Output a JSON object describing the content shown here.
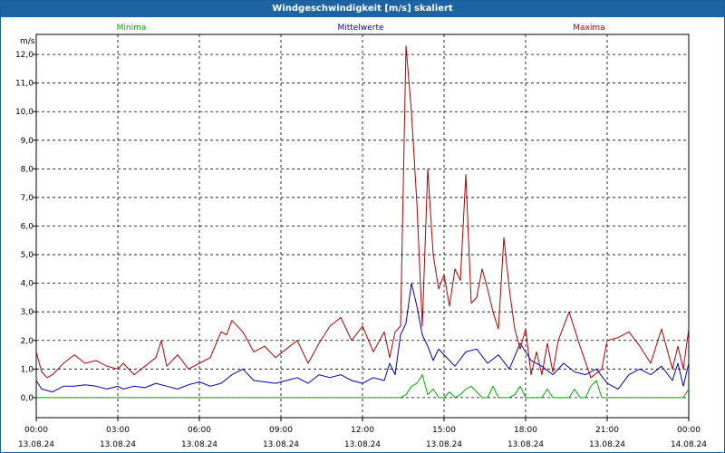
{
  "window": {
    "title": "Windgeschwindigkeit [m/s] skaliert"
  },
  "chart_data": {
    "type": "line",
    "title": "Windgeschwindigkeit [m/s] skaliert",
    "ylabel": "m/s",
    "ylim": [
      -0.7,
      12.7
    ],
    "yticks": [
      "0,0",
      "1,0",
      "2,0",
      "3,0",
      "4,0",
      "5,0",
      "6,0",
      "7,0",
      "8,0",
      "9,0",
      "10,0",
      "11,0",
      "12,0"
    ],
    "xlim": [
      0,
      24
    ],
    "xticks": [
      {
        "time": "00:00",
        "date": "13.08.24"
      },
      {
        "time": "03:00",
        "date": "13.08.24"
      },
      {
        "time": "06:00",
        "date": "13.08.24"
      },
      {
        "time": "09:00",
        "date": "13.08.24"
      },
      {
        "time": "12:00",
        "date": "13.08.24"
      },
      {
        "time": "15:00",
        "date": "13.08.24"
      },
      {
        "time": "18:00",
        "date": "13.08.24"
      },
      {
        "time": "21:00",
        "date": "13.08.24"
      },
      {
        "time": "00:00",
        "date": "14.08.24"
      }
    ],
    "grid": true,
    "legend": "top",
    "series": [
      {
        "name": "Minima",
        "color": "#00aa00",
        "x": [
          0,
          13.4,
          13.6,
          13.8,
          14.0,
          14.2,
          14.4,
          14.6,
          14.8,
          15.0,
          15.2,
          15.4,
          15.6,
          15.8,
          16.0,
          16.2,
          16.4,
          16.6,
          16.8,
          17.0,
          17.2,
          17.4,
          17.6,
          17.8,
          18.0,
          18.6,
          18.8,
          19.0,
          19.6,
          19.8,
          20.0,
          20.2,
          20.4,
          20.6,
          20.8,
          21.0,
          23.6,
          23.8,
          24.0
        ],
        "y": [
          0,
          0,
          0.1,
          0.4,
          0.5,
          0.8,
          0.1,
          0.3,
          0,
          0,
          0.2,
          0,
          0.1,
          0.3,
          0.4,
          0.2,
          0,
          0,
          0.4,
          0,
          0,
          0,
          0.1,
          0.4,
          0,
          0,
          0.3,
          0,
          0,
          0.3,
          0,
          0,
          0.4,
          0.6,
          0,
          0,
          0,
          0,
          0.3
        ]
      },
      {
        "name": "Mittelwerte",
        "color": "#0000c0",
        "x": [
          0,
          0.2,
          0.4,
          0.6,
          0.8,
          1.0,
          1.4,
          1.8,
          2.2,
          2.6,
          3.0,
          3.2,
          3.6,
          4.0,
          4.4,
          4.8,
          5.2,
          5.6,
          6.0,
          6.4,
          6.8,
          7.2,
          7.6,
          8.0,
          8.4,
          8.8,
          9.2,
          9.6,
          10.0,
          10.4,
          10.8,
          11.2,
          11.6,
          12.0,
          12.4,
          12.8,
          13.0,
          13.2,
          13.4,
          13.6,
          13.8,
          14.0,
          14.2,
          14.4,
          14.6,
          14.8,
          15.0,
          15.4,
          15.8,
          16.2,
          16.6,
          17.0,
          17.4,
          17.8,
          18.2,
          18.6,
          19.0,
          19.4,
          19.8,
          20.2,
          20.6,
          21.0,
          21.4,
          21.8,
          22.2,
          22.6,
          23.0,
          23.4,
          23.6,
          23.8,
          24.0
        ],
        "y": [
          0.6,
          0.3,
          0.25,
          0.2,
          0.3,
          0.4,
          0.4,
          0.45,
          0.4,
          0.3,
          0.4,
          0.3,
          0.4,
          0.35,
          0.5,
          0.4,
          0.3,
          0.45,
          0.55,
          0.4,
          0.5,
          0.8,
          1.0,
          0.6,
          0.55,
          0.5,
          0.6,
          0.7,
          0.5,
          0.8,
          0.7,
          0.8,
          0.6,
          0.5,
          0.7,
          0.6,
          1.2,
          0.8,
          2.2,
          2.6,
          4.0,
          3.2,
          2.2,
          1.8,
          1.3,
          1.7,
          1.5,
          1.1,
          1.6,
          1.7,
          1.2,
          1.5,
          1.0,
          1.9,
          1.3,
          1.1,
          0.8,
          1.2,
          0.9,
          0.8,
          1.0,
          0.5,
          0.3,
          0.8,
          1.0,
          0.8,
          1.1,
          0.6,
          1.2,
          0.4,
          1.2
        ]
      },
      {
        "name": "Maxima",
        "color": "#b00000",
        "x": [
          0,
          0.2,
          0.4,
          0.6,
          0.8,
          1.0,
          1.4,
          1.8,
          2.2,
          2.6,
          3.0,
          3.2,
          3.6,
          4.0,
          4.4,
          4.6,
          4.8,
          5.2,
          5.6,
          6.0,
          6.4,
          6.8,
          7.0,
          7.2,
          7.6,
          8.0,
          8.4,
          8.8,
          9.2,
          9.6,
          10.0,
          10.4,
          10.8,
          11.2,
          11.6,
          12.0,
          12.4,
          12.8,
          13.0,
          13.2,
          13.4,
          13.6,
          13.8,
          14.0,
          14.2,
          14.4,
          14.6,
          14.8,
          15.0,
          15.2,
          15.4,
          15.6,
          15.8,
          16.0,
          16.2,
          16.4,
          16.6,
          16.8,
          17.0,
          17.2,
          17.4,
          17.6,
          17.8,
          18.0,
          18.2,
          18.4,
          18.6,
          18.8,
          19.0,
          19.2,
          19.6,
          20.0,
          20.4,
          20.8,
          21.0,
          21.4,
          21.8,
          22.2,
          22.6,
          23.0,
          23.4,
          23.6,
          23.8,
          24.0
        ],
        "y": [
          1.6,
          0.9,
          0.7,
          0.8,
          1.0,
          1.2,
          1.5,
          1.2,
          1.3,
          1.1,
          1.0,
          1.2,
          0.8,
          1.1,
          1.4,
          2.0,
          1.1,
          1.5,
          1.0,
          1.2,
          1.4,
          2.3,
          2.2,
          2.7,
          2.3,
          1.6,
          1.8,
          1.4,
          1.7,
          2.0,
          1.2,
          1.9,
          2.5,
          2.8,
          2.0,
          2.5,
          1.6,
          2.3,
          1.4,
          2.3,
          2.5,
          12.3,
          10.0,
          6.8,
          2.5,
          8.0,
          5.0,
          3.8,
          4.3,
          3.2,
          4.5,
          4.1,
          7.8,
          3.3,
          3.5,
          4.5,
          3.8,
          3.0,
          2.4,
          5.6,
          3.8,
          2.4,
          1.7,
          2.4,
          0.8,
          1.6,
          0.8,
          1.9,
          0.9,
          2.0,
          3.0,
          1.8,
          0.7,
          1.0,
          2.0,
          2.1,
          2.3,
          1.8,
          1.2,
          2.4,
          1.0,
          1.8,
          1.0,
          2.4
        ]
      }
    ]
  }
}
